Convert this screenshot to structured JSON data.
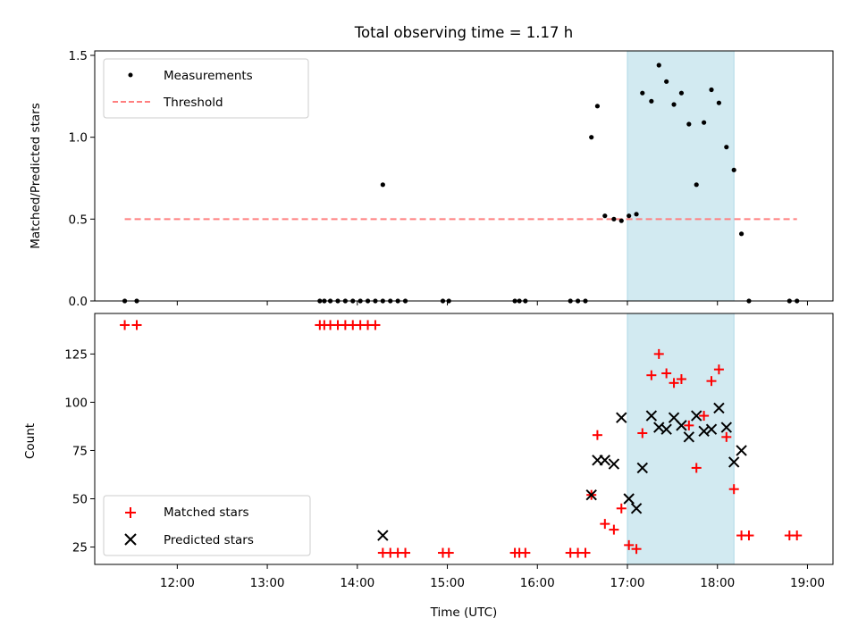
{
  "chart_data": {
    "type": "scatter",
    "title": "Total observing time = 1.17 h",
    "shaded_interval": [
      "17:00",
      "18:11"
    ],
    "colors": {
      "shade": "#add8e6",
      "threshold": "#ff7f7f",
      "measurements": "#000000",
      "matched": "#ff0000",
      "predicted": "#000000"
    },
    "top": {
      "ylabel": "Matched/Predicted stars",
      "ylim": [
        0,
        1.5
      ],
      "yticks": [
        0.0,
        0.5,
        1.0,
        1.5
      ],
      "ytick_labels": [
        "0.0",
        "0.5",
        "1.0",
        "1.5"
      ],
      "legend_position": "top-left",
      "series": [
        {
          "name": "Measurements",
          "marker": "dot",
          "points": [
            [
              "11:25",
              0
            ],
            [
              "11:33",
              0
            ],
            [
              "13:35",
              0
            ],
            [
              "13:38",
              0
            ],
            [
              "13:42",
              0
            ],
            [
              "13:47",
              0
            ],
            [
              "13:52",
              0
            ],
            [
              "13:57",
              0
            ],
            [
              "14:02",
              0
            ],
            [
              "14:07",
              0
            ],
            [
              "14:12",
              0
            ],
            [
              "14:17",
              0
            ],
            [
              "14:17",
              0.71
            ],
            [
              "14:22",
              0
            ],
            [
              "14:27",
              0
            ],
            [
              "14:32",
              0
            ],
            [
              "14:57",
              0
            ],
            [
              "15:01",
              0
            ],
            [
              "15:45",
              0
            ],
            [
              "15:48",
              0
            ],
            [
              "15:52",
              0
            ],
            [
              "16:22",
              0
            ],
            [
              "16:27",
              0
            ],
            [
              "16:32",
              0
            ],
            [
              "16:36",
              1.0
            ],
            [
              "16:40",
              1.19
            ],
            [
              "16:45",
              0.52
            ],
            [
              "16:51",
              0.5
            ],
            [
              "16:56",
              0.49
            ],
            [
              "17:01",
              0.52
            ],
            [
              "17:06",
              0.53
            ],
            [
              "17:10",
              1.27
            ],
            [
              "17:16",
              1.22
            ],
            [
              "17:21",
              1.44
            ],
            [
              "17:26",
              1.34
            ],
            [
              "17:31",
              1.2
            ],
            [
              "17:36",
              1.27
            ],
            [
              "17:41",
              1.08
            ],
            [
              "17:46",
              0.71
            ],
            [
              "17:51",
              1.09
            ],
            [
              "17:56",
              1.29
            ],
            [
              "18:01",
              1.21
            ],
            [
              "18:06",
              0.94
            ],
            [
              "18:11",
              0.8
            ],
            [
              "18:16",
              0.41
            ],
            [
              "18:21",
              0
            ],
            [
              "18:48",
              0
            ],
            [
              "18:53",
              0
            ]
          ]
        },
        {
          "name": "Threshold",
          "style": "dashed",
          "points": [
            [
              "11:25",
              0.5
            ],
            [
              "18:53",
              0.5
            ]
          ]
        }
      ]
    },
    "bottom": {
      "xlabel": "Time (UTC)",
      "ylabel": "Count",
      "ylim": [
        16,
        146
      ],
      "yticks": [
        25,
        50,
        75,
        100,
        125
      ],
      "ytick_labels": [
        "25",
        "50",
        "75",
        "100",
        "125"
      ],
      "xlim": [
        "11:05",
        "19:17"
      ],
      "xticks": [
        "12:00",
        "13:00",
        "14:00",
        "15:00",
        "16:00",
        "17:00",
        "18:00",
        "19:00"
      ],
      "legend_position": "bottom-left",
      "series": [
        {
          "name": "Matched stars",
          "marker": "plus",
          "points": [
            [
              "11:25",
              140
            ],
            [
              "11:33",
              140
            ],
            [
              "13:35",
              140
            ],
            [
              "13:38",
              140
            ],
            [
              "13:42",
              140
            ],
            [
              "13:47",
              140
            ],
            [
              "13:52",
              140
            ],
            [
              "13:57",
              140
            ],
            [
              "14:02",
              140
            ],
            [
              "14:07",
              140
            ],
            [
              "14:12",
              140
            ],
            [
              "14:17",
              22
            ],
            [
              "14:22",
              22
            ],
            [
              "14:27",
              22
            ],
            [
              "14:32",
              22
            ],
            [
              "14:57",
              22
            ],
            [
              "15:01",
              22
            ],
            [
              "15:45",
              22
            ],
            [
              "15:48",
              22
            ],
            [
              "15:52",
              22
            ],
            [
              "16:22",
              22
            ],
            [
              "16:27",
              22
            ],
            [
              "16:32",
              22
            ],
            [
              "16:36",
              52
            ],
            [
              "16:40",
              83
            ],
            [
              "16:45",
              37
            ],
            [
              "16:51",
              34
            ],
            [
              "16:56",
              45
            ],
            [
              "17:01",
              26
            ],
            [
              "17:06",
              24
            ],
            [
              "17:10",
              84
            ],
            [
              "17:16",
              114
            ],
            [
              "17:21",
              125
            ],
            [
              "17:26",
              115
            ],
            [
              "17:31",
              110
            ],
            [
              "17:36",
              112
            ],
            [
              "17:41",
              88
            ],
            [
              "17:46",
              66
            ],
            [
              "17:51",
              93
            ],
            [
              "17:56",
              111
            ],
            [
              "18:01",
              117
            ],
            [
              "18:06",
              82
            ],
            [
              "18:11",
              55
            ],
            [
              "18:16",
              31
            ],
            [
              "18:21",
              31
            ],
            [
              "18:48",
              31
            ],
            [
              "18:53",
              31
            ]
          ]
        },
        {
          "name": "Predicted stars",
          "marker": "x",
          "points": [
            [
              "14:17",
              31
            ],
            [
              "16:36",
              52
            ],
            [
              "16:40",
              70
            ],
            [
              "16:45",
              70
            ],
            [
              "16:51",
              68
            ],
            [
              "16:56",
              92
            ],
            [
              "17:01",
              50
            ],
            [
              "17:06",
              45
            ],
            [
              "17:10",
              66
            ],
            [
              "17:16",
              93
            ],
            [
              "17:21",
              87
            ],
            [
              "17:26",
              86
            ],
            [
              "17:31",
              92
            ],
            [
              "17:36",
              88
            ],
            [
              "17:41",
              82
            ],
            [
              "17:46",
              93
            ],
            [
              "17:51",
              85
            ],
            [
              "17:56",
              86
            ],
            [
              "18:01",
              97
            ],
            [
              "18:06",
              87
            ],
            [
              "18:11",
              69
            ],
            [
              "18:16",
              75
            ]
          ]
        }
      ]
    }
  }
}
